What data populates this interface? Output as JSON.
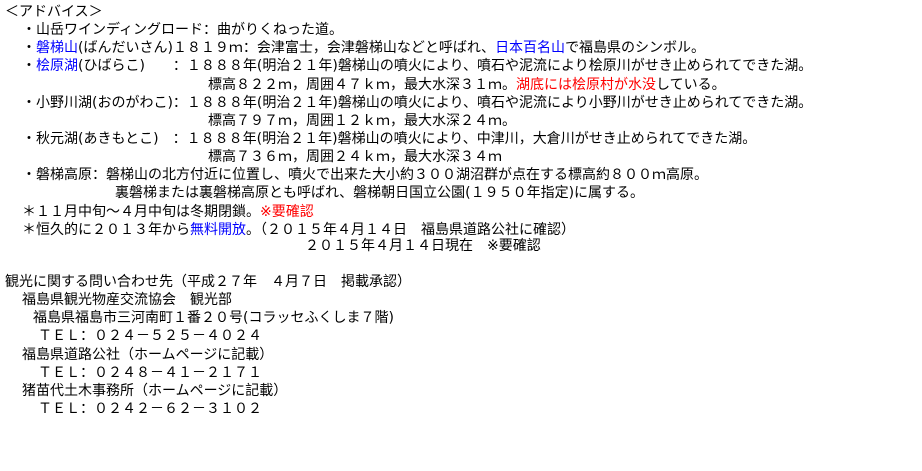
{
  "lines": [
    [
      "＜アドバイス＞"
    ],
    [
      "・山岳ワインディングロード：曲がりくねった道。"
    ],
    [
      "・",
      "磐梯山",
      "(ばんだいさん)１８１９ｍ：会津富士，会津磐梯山などと呼ばれ、",
      "日本百名山",
      "で福島県のシンボル。"
    ],
    [
      "・",
      "桧原湖",
      "(ひばらこ)　　：１８８８年(明治２１年)磐梯山の噴火により、噴石や泥流により桧原川がせき止められてできた湖。"
    ],
    [
      "標高８２２ｍ，周囲４７ｋｍ，最大水深３１ｍ。",
      "湖底には桧原村が水没",
      "している。"
    ],
    [
      "・小野川湖(おのがわこ)：１８８８年(明治２１年)磐梯山の噴火により、噴石や泥流により小野川がせき止められてできた湖。"
    ],
    [
      "標高７９７ｍ，周囲１２ｋｍ，最大水深２４ｍ。"
    ],
    [
      "・秋元湖(あきもとこ)　：１８８８年(明治２１年)磐梯山の噴火により、中津川，大倉川がせき止められてできた湖。"
    ],
    [
      "標高７３６ｍ，周囲２４ｋｍ，最大水深３４ｍ"
    ],
    [
      "・磐梯高原：磐梯山の北方付近に位置し、噴火で出来た大小約３００湖沼群が点在する標高約８００ｍ高原。"
    ],
    [
      "裏磐梯または裏磐梯高原とも呼ばれ、磐梯朝日国立公園(１９５０年指定)に属する。"
    ],
    [
      "＊１１月中旬～４月中旬は冬期閉鎖。",
      "※要確認"
    ],
    [
      "＊恒久的に２０１３年から",
      "無料開放",
      "。（２０１５年４月１４日　福島県道路公社に確認）"
    ],
    [
      "２０１５年４月１４日現在　※要確認"
    ],
    [
      "観光に関する問い合わせ先（平成２７年　４月７日　掲載承認）"
    ],
    [
      "福島県観光物産交流協会　観光部"
    ],
    [
      "福島県福島市三河南町１番２０号(コラッセふくしま７階)"
    ],
    [
      "ＴＥＬ：０２４－５２５－４０２４"
    ],
    [
      "福島県道路公社（ホームページに記載）"
    ],
    [
      "ＴＥＬ：０２４８－４１－２１７１"
    ],
    [
      "猪苗代土木事務所（ホームページに記載）"
    ],
    [
      "ＴＥＬ：０２４２－６２－３１０２"
    ]
  ]
}
